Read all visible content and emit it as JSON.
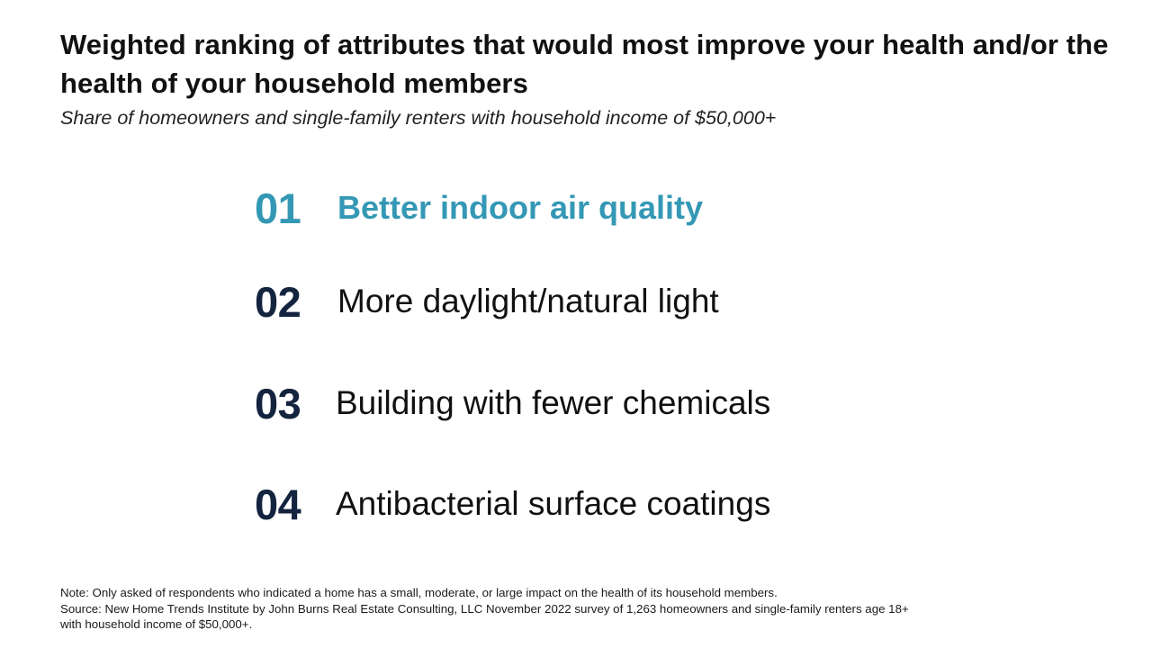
{
  "slide": {
    "title": "Weighted ranking of attributes that would most improve your health and/or the health of your household members",
    "subtitle": "Share of homeowners and single-family renters with household income of $50,000+",
    "accent_color": "#3498b5",
    "number_color": "#14243f"
  },
  "ranking": [
    {
      "rank": "01",
      "label": "Better indoor air quality",
      "highlighted": true
    },
    {
      "rank": "02",
      "label": "More daylight/natural light",
      "highlighted": false
    },
    {
      "rank": "03",
      "label": "Building with fewer chemicals",
      "highlighted": false
    },
    {
      "rank": "04",
      "label": "Antibacterial surface coatings",
      "highlighted": false
    }
  ],
  "footnote": {
    "note": "Note: Only asked of respondents who indicated a home has a small, moderate, or large impact on the health of its household members.",
    "source_line_1": "Source: New Home Trends Institute by John Burns Real Estate Consulting, LLC November 2022 survey of 1,263 homeowners and single-family renters age 18+",
    "source_line_2": "with household income of $50,000+."
  }
}
